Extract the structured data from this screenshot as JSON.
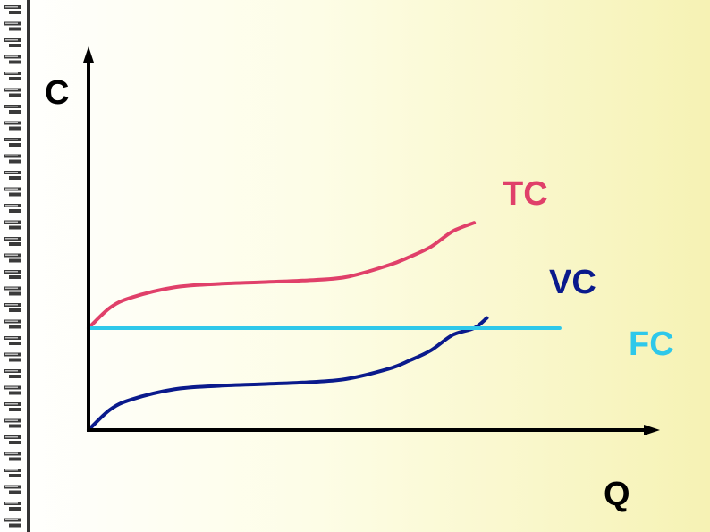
{
  "chart_data": {
    "type": "line",
    "title": "",
    "xlabel": "Q",
    "ylabel": "C",
    "xlim": [
      0,
      10
    ],
    "ylim": [
      0,
      10
    ],
    "grid": false,
    "legend": "inline-labels",
    "series": [
      {
        "name": "TC",
        "color": "#e0406a",
        "x": [
          0,
          0.5,
          1,
          2,
          3,
          4,
          5,
          6,
          7,
          7.5,
          8,
          8.5,
          9
        ],
        "values": [
          3.0,
          3.6,
          3.9,
          4.2,
          4.3,
          4.35,
          4.4,
          4.5,
          4.85,
          5.1,
          5.4,
          5.85,
          6.1
        ]
      },
      {
        "name": "VC",
        "color": "#0a1a8c",
        "x": [
          0,
          0.5,
          1,
          2,
          3,
          4,
          5,
          6,
          7,
          7.5,
          8,
          8.5,
          9,
          9.3
        ],
        "values": [
          0,
          0.6,
          0.9,
          1.2,
          1.3,
          1.35,
          1.4,
          1.5,
          1.8,
          2.05,
          2.35,
          2.8,
          3.0,
          3.3
        ]
      },
      {
        "name": "FC",
        "color": "#2ec8ea",
        "x": [
          0,
          11
        ],
        "values": [
          3.0,
          3.0
        ]
      }
    ]
  }
}
